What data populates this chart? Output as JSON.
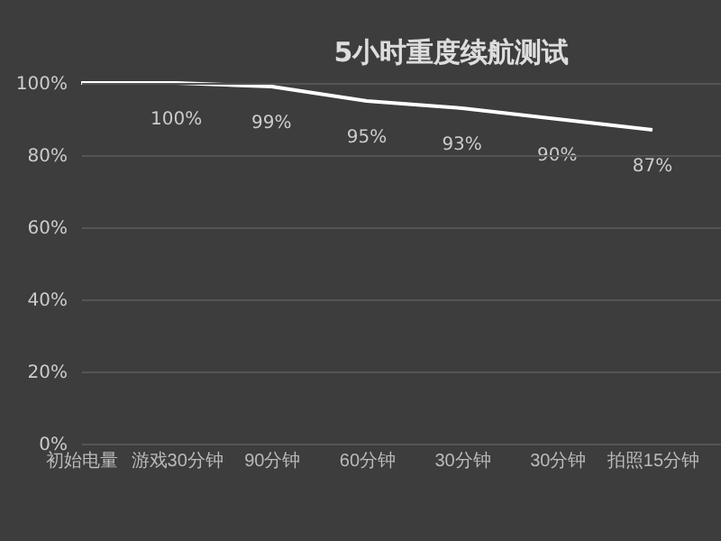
{
  "chart_data": {
    "type": "line",
    "title": "5小时重度续航测试",
    "categories": [
      "初始电量",
      "游戏30分钟",
      "90分钟",
      "60分钟",
      "30分钟",
      "30分钟",
      "拍照15分钟"
    ],
    "series": [
      {
        "color": "#ffffff",
        "values": [
          100,
          100,
          99,
          95,
          93,
          90,
          87
        ],
        "value_labels": [
          null,
          "100%",
          "99%",
          "95%",
          "93%",
          "90%",
          "87%"
        ]
      }
    ],
    "ylim": [
      0,
      100
    ],
    "yticks": [
      {
        "value": 0,
        "label": "0%"
      },
      {
        "value": 20,
        "label": "20%"
      },
      {
        "value": 40,
        "label": "40%"
      },
      {
        "value": 60,
        "label": "60%"
      },
      {
        "value": 80,
        "label": "80%"
      },
      {
        "value": 100,
        "label": "100%"
      }
    ],
    "grid": "y",
    "marker": "none",
    "line_style": "solid"
  }
}
